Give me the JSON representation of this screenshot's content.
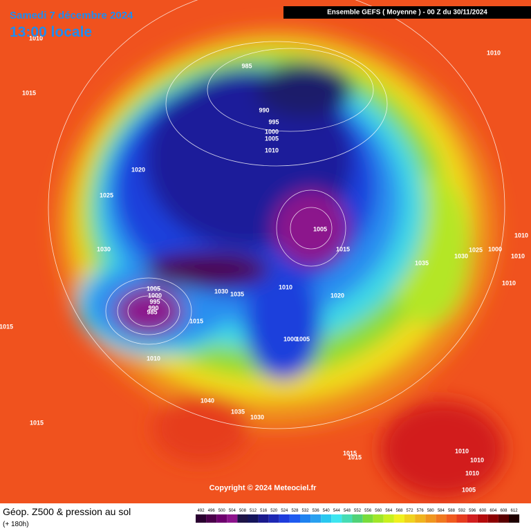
{
  "header": {
    "date": "Samedi 7 décembre 2024",
    "time": "13:00 locale",
    "run": "Ensemble GEFS  ( Moyenne )  -  00 Z du 30/11/2024"
  },
  "copyright": "Copyright © 2024 Meteociel.fr",
  "footer": {
    "title": "Géop. Z500 & pression au sol",
    "lead": "(+ 180h)"
  },
  "legend": {
    "values": [
      492,
      496,
      500,
      504,
      508,
      512,
      516,
      520,
      524,
      528,
      532,
      536,
      540,
      544,
      548,
      552,
      556,
      560,
      564,
      568,
      572,
      576,
      580,
      584,
      588,
      592,
      596,
      600,
      604,
      608,
      612
    ],
    "colors": [
      "#2a0030",
      "#4b004b",
      "#6e006e",
      "#8c148c",
      "#1e1446",
      "#14145a",
      "#1a1a8c",
      "#1e28b4",
      "#1e3cdc",
      "#1e5af0",
      "#1e82f0",
      "#28a0f0",
      "#28c8f0",
      "#3ce6f0",
      "#46dcb4",
      "#50d278",
      "#78dc3c",
      "#a0e628",
      "#c8f01e",
      "#f0f01e",
      "#f0d21e",
      "#f0b41e",
      "#f0961e",
      "#f0781e",
      "#f05a1e",
      "#e63c1e",
      "#d21e1e",
      "#b40a0a",
      "#8c0000",
      "#5a0000",
      "#1e0000"
    ]
  },
  "isobar_labels": [
    "1010",
    "1015",
    "1010",
    "985",
    "990",
    "995",
    "1000",
    "1005",
    "1010",
    "1020",
    "1025",
    "1030",
    "1005",
    "1015",
    "1035",
    "1030",
    "1025",
    "1000",
    "1010",
    "1010",
    "1005",
    "1000",
    "995",
    "990",
    "985",
    "1015",
    "1030",
    "1035",
    "1010",
    "1020",
    "1000",
    "1005",
    "1010",
    "1015",
    "1040",
    "1035",
    "1030",
    "1015",
    "1015",
    "1015",
    "1010",
    "1010",
    "1010",
    "1005",
    "1010"
  ]
}
